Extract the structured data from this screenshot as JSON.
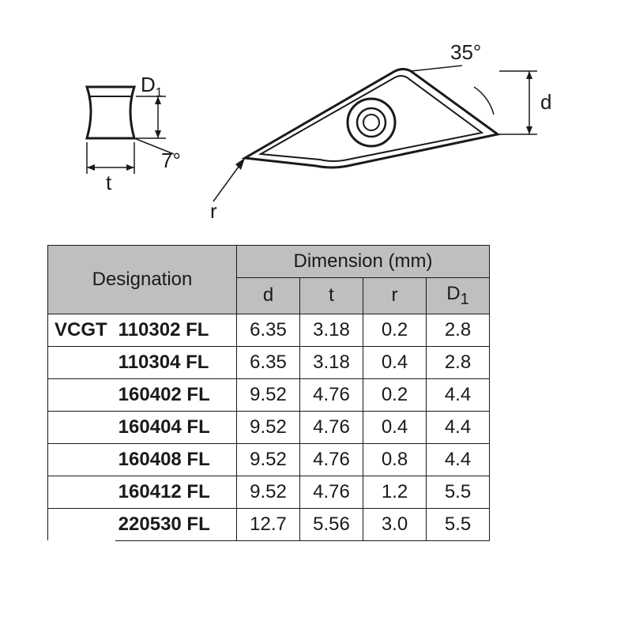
{
  "diagram": {
    "side_view": {
      "stroke": "#1a1a1a",
      "fill": "#ffffff",
      "stroke_width": 2,
      "label_D1": "D",
      "label_D1_sub": "1",
      "label_t": "t",
      "label_angle": "7°"
    },
    "top_view": {
      "stroke": "#1a1a1a",
      "fill": "#ffffff",
      "stroke_width": 2,
      "label_angle": "35°",
      "label_d": "d",
      "label_r": "r"
    },
    "label_color": "#1a1a1a",
    "label_fontsize": 26
  },
  "table": {
    "header_bg": "#bfbfbf",
    "border_color": "#1a1a1a",
    "designation_header": "Designation",
    "dimension_group_header": "Dimension (mm)",
    "columns": [
      "d",
      "t",
      "r",
      "D1"
    ],
    "col_d1_label": "D",
    "col_d1_sub": "1",
    "prefix": "VCGT",
    "rows": [
      {
        "code": "110302 FL",
        "d": "6.35",
        "t": "3.18",
        "r": "0.2",
        "D1": "2.8"
      },
      {
        "code": "110304 FL",
        "d": "6.35",
        "t": "3.18",
        "r": "0.4",
        "D1": "2.8"
      },
      {
        "code": "160402 FL",
        "d": "9.52",
        "t": "4.76",
        "r": "0.2",
        "D1": "4.4"
      },
      {
        "code": "160404 FL",
        "d": "9.52",
        "t": "4.76",
        "r": "0.4",
        "D1": "4.4"
      },
      {
        "code": "160408 FL",
        "d": "9.52",
        "t": "4.76",
        "r": "0.8",
        "D1": "4.4"
      },
      {
        "code": "160412 FL",
        "d": "9.52",
        "t": "4.76",
        "r": "1.2",
        "D1": "5.5"
      },
      {
        "code": "220530 FL",
        "d": "12.7",
        "t": "5.56",
        "r": "3.0",
        "D1": "5.5"
      }
    ]
  }
}
